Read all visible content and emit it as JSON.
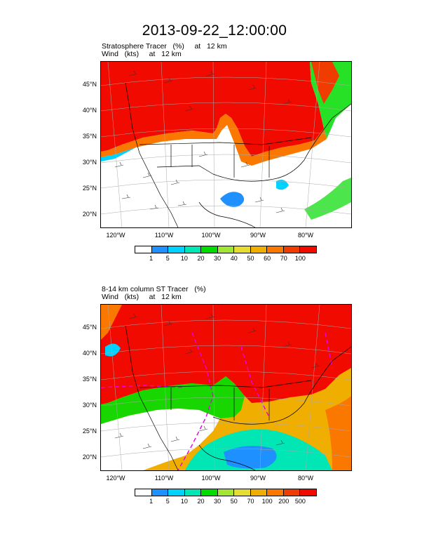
{
  "title": "2013-09-22_12:00:00",
  "panels": [
    {
      "subtitle_line1": "Stratosphere Tracer   (%)     at   12 km",
      "subtitle_line2": "Wind   (kts)     at   12 km",
      "lat_labels": [
        "45°N",
        "40°N",
        "35°N",
        "30°N",
        "25°N",
        "20°N"
      ],
      "lon_labels": [
        "120°W",
        "110°W",
        "100°W",
        "90°W",
        "80°W"
      ],
      "colorbar_labels": [
        "1",
        "5",
        "10",
        "20",
        "30",
        "40",
        "50",
        "60",
        "70",
        "100"
      ]
    },
    {
      "subtitle_line1": "8-14 km column ST Tracer   (%)",
      "subtitle_line2": "Wind   (kts)     at   12 km",
      "lat_labels": [
        "45°N",
        "40°N",
        "35°N",
        "30°N",
        "25°N",
        "20°N"
      ],
      "lon_labels": [
        "120°W",
        "110°W",
        "100°W",
        "90°W",
        "80°W"
      ],
      "colorbar_labels": [
        "1",
        "5",
        "10",
        "20",
        "30",
        "50",
        "70",
        "100",
        "200",
        "500"
      ]
    }
  ],
  "colorbar_colors": [
    "#ffffff",
    "#1e90ff",
    "#00d2ff",
    "#00e6b4",
    "#00dc00",
    "#a0e632",
    "#e6dc32",
    "#f0af00",
    "#fa7800",
    "#f03c00",
    "#f00a00"
  ]
}
